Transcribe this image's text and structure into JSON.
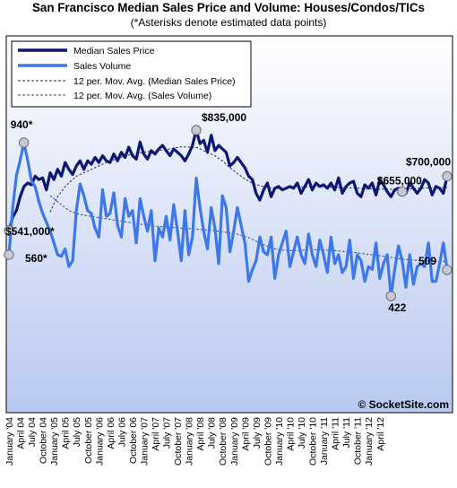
{
  "colors": {
    "background_gradient_top": "#ffffff",
    "background_gradient_bottom": "#b9c8f0",
    "plot_border": "#000000",
    "median_price": "#0c1773",
    "sales_volume": "#3c78e8",
    "mov_avg_price": "#1d2a5a",
    "mov_avg_volume": "#33447a",
    "marker_fill": "#c8c8d4",
    "marker_stroke": "#6a6a78"
  },
  "chart_data": {
    "type": "line",
    "title": "San Francisco Median Sales Price and Volume: Houses/Condos/TICs",
    "subtitle": "(*Asterisks denote estimated data points)",
    "grid": false,
    "legend_placement": "top-left",
    "y_axis": "none (values annotated on chart)",
    "x_tick_labels": [
      "January '04",
      "April 04",
      "July 04",
      "October 04",
      "January '05",
      "April 05",
      "July 05",
      "October 05",
      "January '06",
      "April 06",
      "July 06",
      "October 06",
      "January '07",
      "April '07",
      "July '07",
      "October '07",
      "January '08",
      "April '08",
      "July '08",
      "October '08",
      "January '09",
      "April '09",
      "July '09",
      "October '09",
      "January '10",
      "April '10",
      "July '10",
      "October '10",
      "January '11",
      "April '11",
      "July '11",
      "October '11",
      "January '12",
      "April '12"
    ],
    "series": [
      {
        "name": "Median Sales Price",
        "units": "USD",
        "values": [
          541000,
          580000,
          600000,
          640000,
          670000,
          680000,
          675000,
          700000,
          690000,
          695000,
          660000,
          710000,
          690000,
          720000,
          700000,
          740000,
          720000,
          705000,
          730000,
          745000,
          720000,
          745000,
          735000,
          755000,
          740000,
          760000,
          745000,
          740000,
          765000,
          745000,
          770000,
          755000,
          785000,
          760000,
          750000,
          800000,
          765000,
          750000,
          775000,
          765000,
          780000,
          790000,
          775000,
          760000,
          780000,
          770000,
          760000,
          745000,
          765000,
          790000,
          835000,
          795000,
          805000,
          770000,
          820000,
          775000,
          790000,
          780000,
          770000,
          730000,
          740000,
          755000,
          740000,
          725000,
          700000,
          690000,
          650000,
          630000,
          660000,
          680000,
          640000,
          665000,
          670000,
          660000,
          665000,
          670000,
          665000,
          680000,
          650000,
          670000,
          690000,
          660000,
          680000,
          670000,
          675000,
          665000,
          680000,
          660000,
          695000,
          650000,
          670000,
          680000,
          685000,
          650000,
          640000,
          675000,
          665000,
          680000,
          645000,
          690000,
          675000,
          655000,
          640000,
          660000,
          665000,
          655000,
          650000,
          680000,
          665000,
          650000,
          665000,
          690000,
          680000,
          645000,
          670000,
          665000,
          650000,
          700000
        ],
        "notes": {
          "first": "$541,000*",
          "peak": "$835,000",
          "late": "$655,000",
          "last": "$700,000"
        }
      },
      {
        "name": "Sales Volume",
        "units": "sales per month",
        "values": [
          560,
          720,
          830,
          880,
          940,
          880,
          810,
          790,
          740,
          700,
          670,
          640,
          600,
          560,
          555,
          580,
          520,
          540,
          710,
          800,
          760,
          710,
          700,
          650,
          620,
          780,
          690,
          700,
          770,
          660,
          620,
          750,
          690,
          710,
          600,
          750,
          690,
          640,
          710,
          540,
          650,
          620,
          690,
          610,
          730,
          640,
          540,
          710,
          560,
          620,
          820,
          720,
          640,
          580,
          720,
          650,
          530,
          760,
          720,
          570,
          640,
          720,
          660,
          600,
          470,
          510,
          540,
          620,
          570,
          560,
          620,
          480,
          560,
          600,
          640,
          520,
          570,
          620,
          560,
          530,
          630,
          560,
          520,
          610,
          560,
          500,
          620,
          530,
          560,
          500,
          520,
          610,
          480,
          560,
          540,
          470,
          520,
          510,
          600,
          480,
          530,
          560,
          420,
          510,
          590,
          540,
          450,
          560,
          460,
          520,
          530,
          520,
          600,
          470,
          470,
          530,
          600,
          509
        ],
        "notes": {
          "first": "560*",
          "peak": "940*",
          "low": "422",
          "last": "509"
        }
      },
      {
        "name": "12 per. Mov. Avg. (Median Sales Price)",
        "values": [
          null,
          null,
          null,
          null,
          null,
          null,
          null,
          null,
          null,
          null,
          null,
          595000,
          620000,
          640000,
          655000,
          670000,
          680000,
          690000,
          700000,
          705000,
          710000,
          715000,
          720000,
          725000,
          730000,
          735000,
          740000,
          745000,
          748000,
          752000,
          756000,
          760000,
          762000,
          764000,
          766000,
          768000,
          770000,
          772000,
          773000,
          774000,
          775000,
          777000,
          778000,
          780000,
          782000,
          784000,
          786000,
          786000,
          785000,
          784000,
          784000,
          780000,
          775000,
          770000,
          765000,
          760000,
          752000,
          745000,
          735000,
          725000,
          716000,
          708000,
          700000,
          692000,
          686000,
          680000,
          676000,
          672000,
          670000,
          668000,
          666000,
          665000,
          664000,
          664000,
          665000,
          666000,
          666000,
          667000,
          668000,
          668000,
          669000,
          669000,
          670000,
          670000,
          670000,
          669000,
          668000,
          668000,
          667000,
          666000,
          666000,
          666000,
          665000,
          665000,
          664000,
          664000,
          663000,
          663000,
          663000,
          662000,
          662000,
          662000,
          662000,
          662000,
          662000,
          663000,
          663000,
          663000,
          664000,
          664000,
          665000,
          665000,
          666000,
          666000,
          666000,
          666000,
          667000,
          667000
        ]
      },
      {
        "name": "12 per. Mov. Avg. (Sales Volume)",
        "values": [
          null,
          null,
          null,
          null,
          null,
          null,
          null,
          null,
          null,
          null,
          null,
          760,
          750,
          740,
          730,
          720,
          710,
          705,
          700,
          697,
          694,
          692,
          690,
          688,
          686,
          684,
          682,
          680,
          678,
          676,
          674,
          672,
          670,
          668,
          666,
          664,
          662,
          660,
          658,
          657,
          656,
          655,
          654,
          653,
          652,
          651,
          650,
          650,
          649,
          648,
          647,
          646,
          645,
          644,
          643,
          641,
          640,
          638,
          636,
          634,
          632,
          630,
          626,
          622,
          618,
          612,
          606,
          600,
          594,
          589,
          584,
          580,
          578,
          576,
          575,
          574,
          574,
          575,
          575,
          576,
          576,
          577,
          577,
          577,
          576,
          576,
          575,
          574,
          573,
          572,
          570,
          569,
          568,
          567,
          565,
          563,
          561,
          560,
          559,
          557,
          555,
          553,
          551,
          549,
          547,
          545,
          544,
          543,
          542,
          541,
          540,
          540,
          539,
          539,
          538,
          538,
          538,
          538
        ]
      }
    ],
    "annotations": [
      {
        "label": "940*",
        "series": "Sales Volume",
        "point": "peak"
      },
      {
        "label": "$835,000",
        "series": "Median Sales Price",
        "point": "peak"
      },
      {
        "label": "$541,000*",
        "series": "Median Sales Price",
        "point": "first"
      },
      {
        "label": "560*",
        "series": "Sales Volume",
        "point": "first"
      },
      {
        "label": "$655,000",
        "series": "Median Sales Price",
        "point": "late"
      },
      {
        "label": "$700,000",
        "series": "Median Sales Price",
        "point": "last"
      },
      {
        "label": "509",
        "series": "Sales Volume",
        "point": "last"
      },
      {
        "label": "422",
        "series": "Sales Volume",
        "point": "low"
      }
    ],
    "watermark": "© SocketSite.com"
  }
}
